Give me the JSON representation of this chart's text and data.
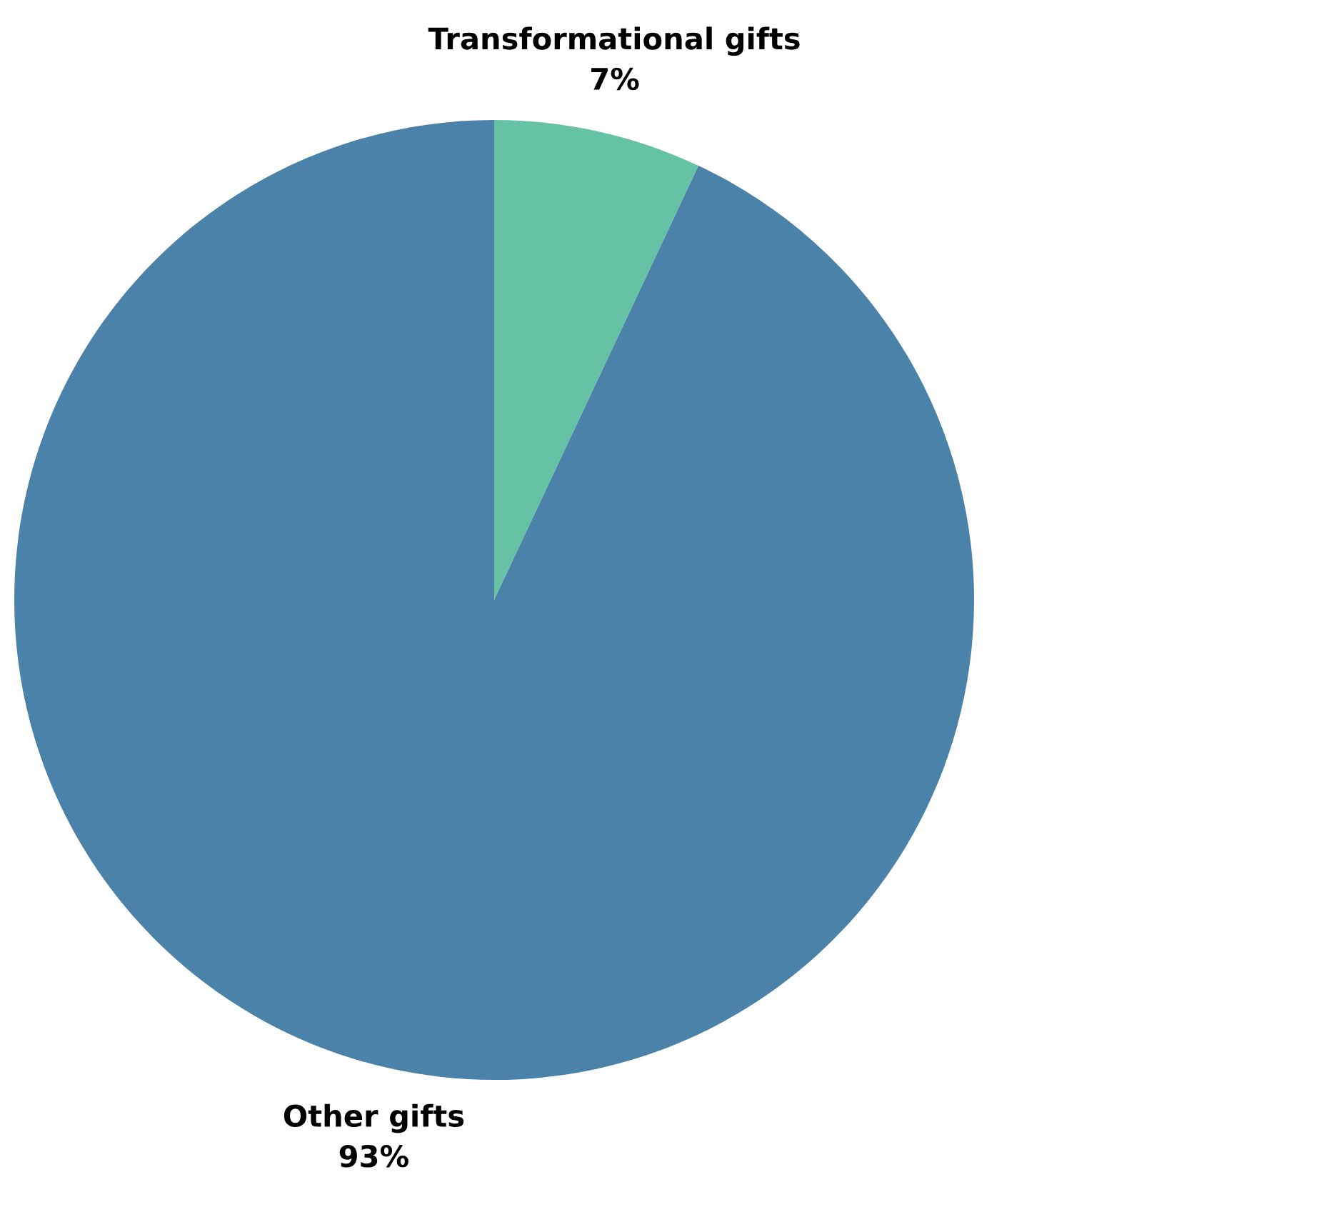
{
  "chart_data": {
    "type": "pie",
    "categories": [
      "Transformational gifts",
      "Other gifts"
    ],
    "values": [
      7,
      93
    ],
    "colors": [
      "#66c2a5",
      "#4a82a9"
    ],
    "value_labels": [
      "7%",
      "93%"
    ],
    "legend": false
  }
}
